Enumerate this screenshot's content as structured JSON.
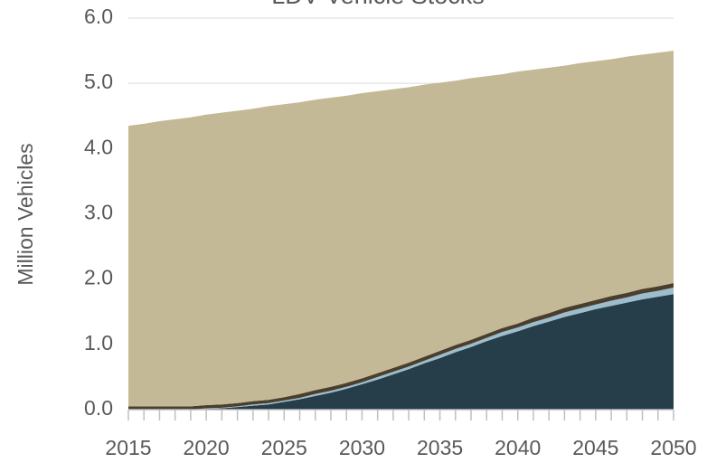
{
  "chart_data": {
    "type": "stacked_area",
    "title": "LDV Vehicle Stocks",
    "y_label": "Million Vehicles",
    "x": [
      2015,
      2016,
      2017,
      2018,
      2019,
      2020,
      2021,
      2022,
      2023,
      2024,
      2025,
      2026,
      2027,
      2028,
      2029,
      2030,
      2031,
      2032,
      2033,
      2034,
      2035,
      2036,
      2037,
      2038,
      2039,
      2040,
      2041,
      2042,
      2043,
      2044,
      2045,
      2046,
      2047,
      2048,
      2049,
      2050
    ],
    "series": [
      {
        "color": "#263d4a",
        "values": [
          0,
          0,
          0,
          0,
          0,
          0.01,
          0.02,
          0.04,
          0.06,
          0.08,
          0.12,
          0.16,
          0.21,
          0.26,
          0.32,
          0.39,
          0.46,
          0.54,
          0.62,
          0.71,
          0.79,
          0.88,
          0.96,
          1.05,
          1.13,
          1.2,
          1.28,
          1.35,
          1.42,
          1.48,
          1.54,
          1.59,
          1.64,
          1.69,
          1.73,
          1.77
        ]
      },
      {
        "color": "#9dbdcc",
        "values": [
          0,
          0,
          0,
          0,
          0,
          0.01,
          0.01,
          0.01,
          0.02,
          0.02,
          0.02,
          0.02,
          0.03,
          0.03,
          0.03,
          0.03,
          0.04,
          0.04,
          0.04,
          0.04,
          0.05,
          0.05,
          0.05,
          0.05,
          0.06,
          0.06,
          0.06,
          0.06,
          0.07,
          0.07,
          0.07,
          0.08,
          0.08,
          0.09,
          0.09,
          0.1
        ]
      },
      {
        "color": "#4a3f2c",
        "values": [
          0.05,
          0.05,
          0.05,
          0.05,
          0.05,
          0.05,
          0.05,
          0.05,
          0.05,
          0.05,
          0.05,
          0.06,
          0.06,
          0.06,
          0.06,
          0.06,
          0.06,
          0.06,
          0.06,
          0.06,
          0.06,
          0.06,
          0.06,
          0.06,
          0.06,
          0.06,
          0.07,
          0.07,
          0.07,
          0.07,
          0.07,
          0.07,
          0.07,
          0.07,
          0.07,
          0.07
        ]
      },
      {
        "color": "#c4b996",
        "values": [
          4.3,
          4.33,
          4.37,
          4.4,
          4.43,
          4.45,
          4.47,
          4.48,
          4.48,
          4.5,
          4.49,
          4.47,
          4.45,
          4.43,
          4.4,
          4.37,
          4.32,
          4.27,
          4.22,
          4.17,
          4.11,
          4.05,
          4.01,
          3.95,
          3.89,
          3.86,
          3.8,
          3.76,
          3.71,
          3.69,
          3.66,
          3.63,
          3.62,
          3.59,
          3.58,
          3.56
        ]
      }
    ],
    "xlim": [
      2015,
      2050
    ],
    "xticks": [
      2015,
      2020,
      2025,
      2030,
      2035,
      2040,
      2045,
      2050
    ],
    "ylim": [
      0,
      6
    ],
    "yticks": [
      {
        "value": 0,
        "label": "0.0"
      },
      {
        "value": 1,
        "label": "1.0"
      },
      {
        "value": 2,
        "label": "2.0"
      },
      {
        "value": 3,
        "label": "3.0"
      },
      {
        "value": 4,
        "label": "4.0"
      },
      {
        "value": 5,
        "label": "5.0"
      },
      {
        "value": 6,
        "label": "6.0"
      }
    ],
    "grid": true
  }
}
